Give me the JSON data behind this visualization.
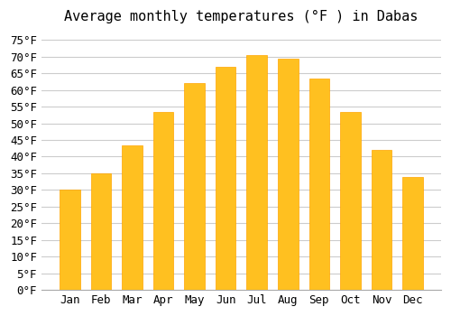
{
  "title": "Average monthly temperatures (°F ) in Dabas",
  "months": [
    "Jan",
    "Feb",
    "Mar",
    "Apr",
    "May",
    "Jun",
    "Jul",
    "Aug",
    "Sep",
    "Oct",
    "Nov",
    "Dec"
  ],
  "values": [
    30,
    35,
    43.5,
    53.5,
    62,
    67,
    70.5,
    69.5,
    63.5,
    53.5,
    42,
    34
  ],
  "bar_color": "#FFC020",
  "bar_edge_color": "#FFA500",
  "background_color": "#ffffff",
  "grid_color": "#cccccc",
  "ylim": [
    0,
    77
  ],
  "yticks": [
    0,
    5,
    10,
    15,
    20,
    25,
    30,
    35,
    40,
    45,
    50,
    55,
    60,
    65,
    70,
    75
  ],
  "title_fontsize": 11,
  "tick_fontsize": 9,
  "font_family": "monospace"
}
